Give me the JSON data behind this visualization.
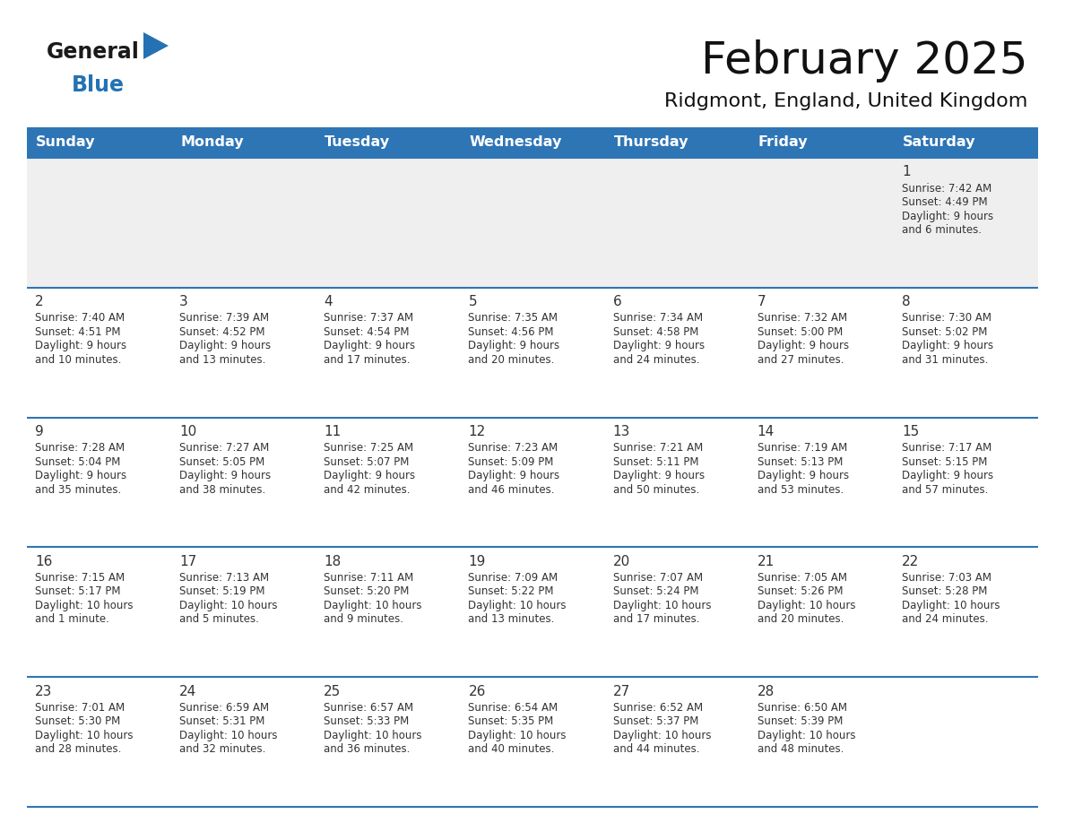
{
  "title": "February 2025",
  "subtitle": "Ridgmont, England, United Kingdom",
  "header_color": "#2E75B6",
  "header_text_color": "#FFFFFF",
  "day_names": [
    "Sunday",
    "Monday",
    "Tuesday",
    "Wednesday",
    "Thursday",
    "Friday",
    "Saturday"
  ],
  "row0_bg": "#EFEFEF",
  "row_bg": "#FFFFFF",
  "divider_color": "#2E75B6",
  "text_color": "#333333",
  "day_num_color": "#333333",
  "logo_general_color": "#1a1a1a",
  "logo_blue_color": "#2472B3",
  "calendar": [
    [
      null,
      null,
      null,
      null,
      null,
      null,
      {
        "day": 1,
        "sunrise": "7:42 AM",
        "sunset": "4:49 PM",
        "daylight": "9 hours\nand 6 minutes."
      }
    ],
    [
      {
        "day": 2,
        "sunrise": "7:40 AM",
        "sunset": "4:51 PM",
        "daylight": "9 hours\nand 10 minutes."
      },
      {
        "day": 3,
        "sunrise": "7:39 AM",
        "sunset": "4:52 PM",
        "daylight": "9 hours\nand 13 minutes."
      },
      {
        "day": 4,
        "sunrise": "7:37 AM",
        "sunset": "4:54 PM",
        "daylight": "9 hours\nand 17 minutes."
      },
      {
        "day": 5,
        "sunrise": "7:35 AM",
        "sunset": "4:56 PM",
        "daylight": "9 hours\nand 20 minutes."
      },
      {
        "day": 6,
        "sunrise": "7:34 AM",
        "sunset": "4:58 PM",
        "daylight": "9 hours\nand 24 minutes."
      },
      {
        "day": 7,
        "sunrise": "7:32 AM",
        "sunset": "5:00 PM",
        "daylight": "9 hours\nand 27 minutes."
      },
      {
        "day": 8,
        "sunrise": "7:30 AM",
        "sunset": "5:02 PM",
        "daylight": "9 hours\nand 31 minutes."
      }
    ],
    [
      {
        "day": 9,
        "sunrise": "7:28 AM",
        "sunset": "5:04 PM",
        "daylight": "9 hours\nand 35 minutes."
      },
      {
        "day": 10,
        "sunrise": "7:27 AM",
        "sunset": "5:05 PM",
        "daylight": "9 hours\nand 38 minutes."
      },
      {
        "day": 11,
        "sunrise": "7:25 AM",
        "sunset": "5:07 PM",
        "daylight": "9 hours\nand 42 minutes."
      },
      {
        "day": 12,
        "sunrise": "7:23 AM",
        "sunset": "5:09 PM",
        "daylight": "9 hours\nand 46 minutes."
      },
      {
        "day": 13,
        "sunrise": "7:21 AM",
        "sunset": "5:11 PM",
        "daylight": "9 hours\nand 50 minutes."
      },
      {
        "day": 14,
        "sunrise": "7:19 AM",
        "sunset": "5:13 PM",
        "daylight": "9 hours\nand 53 minutes."
      },
      {
        "day": 15,
        "sunrise": "7:17 AM",
        "sunset": "5:15 PM",
        "daylight": "9 hours\nand 57 minutes."
      }
    ],
    [
      {
        "day": 16,
        "sunrise": "7:15 AM",
        "sunset": "5:17 PM",
        "daylight": "10 hours\nand 1 minute."
      },
      {
        "day": 17,
        "sunrise": "7:13 AM",
        "sunset": "5:19 PM",
        "daylight": "10 hours\nand 5 minutes."
      },
      {
        "day": 18,
        "sunrise": "7:11 AM",
        "sunset": "5:20 PM",
        "daylight": "10 hours\nand 9 minutes."
      },
      {
        "day": 19,
        "sunrise": "7:09 AM",
        "sunset": "5:22 PM",
        "daylight": "10 hours\nand 13 minutes."
      },
      {
        "day": 20,
        "sunrise": "7:07 AM",
        "sunset": "5:24 PM",
        "daylight": "10 hours\nand 17 minutes."
      },
      {
        "day": 21,
        "sunrise": "7:05 AM",
        "sunset": "5:26 PM",
        "daylight": "10 hours\nand 20 minutes."
      },
      {
        "day": 22,
        "sunrise": "7:03 AM",
        "sunset": "5:28 PM",
        "daylight": "10 hours\nand 24 minutes."
      }
    ],
    [
      {
        "day": 23,
        "sunrise": "7:01 AM",
        "sunset": "5:30 PM",
        "daylight": "10 hours\nand 28 minutes."
      },
      {
        "day": 24,
        "sunrise": "6:59 AM",
        "sunset": "5:31 PM",
        "daylight": "10 hours\nand 32 minutes."
      },
      {
        "day": 25,
        "sunrise": "6:57 AM",
        "sunset": "5:33 PM",
        "daylight": "10 hours\nand 36 minutes."
      },
      {
        "day": 26,
        "sunrise": "6:54 AM",
        "sunset": "5:35 PM",
        "daylight": "10 hours\nand 40 minutes."
      },
      {
        "day": 27,
        "sunrise": "6:52 AM",
        "sunset": "5:37 PM",
        "daylight": "10 hours\nand 44 minutes."
      },
      {
        "day": 28,
        "sunrise": "6:50 AM",
        "sunset": "5:39 PM",
        "daylight": "10 hours\nand 48 minutes."
      },
      null
    ]
  ],
  "fig_width": 11.88,
  "fig_height": 9.18,
  "dpi": 100
}
